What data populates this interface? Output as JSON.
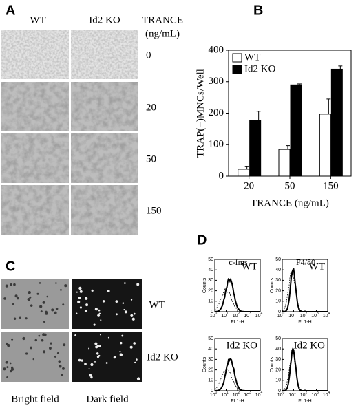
{
  "panel_a": {
    "letter": "A",
    "columns": [
      "WT",
      "Id2 KO"
    ],
    "dose_title": [
      "TRANCE",
      "(ng/mL)"
    ],
    "doses": [
      "0",
      "20",
      "50",
      "150"
    ]
  },
  "panel_b": {
    "letter": "B"
  },
  "chart_data": {
    "type": "bar",
    "ylabel": "TRAP(+)MNCs/Well",
    "xlabel": "TRANCE (ng/mL)",
    "categories": [
      "20",
      "50",
      "150"
    ],
    "series": [
      {
        "name": "WT",
        "color": "#ffffff",
        "values": [
          22,
          85,
          197
        ],
        "errors": [
          8,
          12,
          48
        ]
      },
      {
        "name": "Id2 KO",
        "color": "#000000",
        "values": [
          178,
          290,
          340
        ],
        "errors": [
          28,
          3,
          10
        ]
      }
    ],
    "ylim": [
      0,
      400
    ],
    "yticks": [
      0,
      100,
      200,
      300,
      400
    ],
    "legend": "upper-left"
  },
  "panel_c": {
    "letter": "C",
    "rows": [
      "WT",
      "Id2 KO"
    ],
    "columns": [
      "Bright field",
      "Dark field"
    ]
  },
  "panel_d": {
    "letter": "D",
    "columns": [
      "c-fms",
      "F4/80"
    ],
    "plots": [
      "WT",
      "WT",
      "Id2 KO",
      "Id2 KO"
    ],
    "ylabel": "Counts",
    "xlabel": "FL1-H",
    "yticks": [
      0,
      10,
      20,
      30,
      40,
      50
    ],
    "xticks": [
      {
        "value": 1,
        "base": "10",
        "exponent": "0"
      },
      {
        "value": 10,
        "base": "10",
        "exponent": "1"
      },
      {
        "value": 100,
        "base": "10",
        "exponent": "2"
      },
      {
        "value": 1000,
        "base": "10",
        "exponent": "3"
      },
      {
        "value": 10000,
        "base": "10",
        "exponent": "4"
      }
    ]
  }
}
